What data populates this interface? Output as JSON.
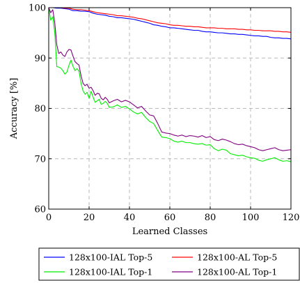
{
  "chart_data": {
    "type": "line",
    "title": "",
    "xlabel": "Learned Classes",
    "ylabel": "Accuracy [%]",
    "xlim": [
      0,
      120
    ],
    "ylim": [
      60,
      100
    ],
    "xticks": [
      "0",
      "20",
      "40",
      "60",
      "80",
      "100",
      "120"
    ],
    "xtick_values": [
      0,
      20,
      40,
      60,
      80,
      100,
      120
    ],
    "yticks": [
      "60",
      "70",
      "80",
      "90",
      "100"
    ],
    "ytick_values": [
      60,
      70,
      80,
      90,
      100
    ],
    "grid": true,
    "legend_position": "bottom-outside",
    "series": [
      {
        "name": "128x100-IAL Top-5",
        "color": "#0000ff",
        "x": [
          0,
          2,
          4,
          6,
          8,
          10,
          12,
          14,
          16,
          18,
          20,
          22,
          24,
          26,
          28,
          30,
          32,
          34,
          36,
          38,
          40,
          42,
          44,
          46,
          48,
          50,
          52,
          54,
          56,
          58,
          60,
          62,
          64,
          66,
          68,
          70,
          72,
          74,
          76,
          78,
          80,
          82,
          84,
          86,
          88,
          90,
          92,
          94,
          96,
          98,
          100,
          102,
          104,
          106,
          108,
          110,
          112,
          114,
          116,
          118,
          120
        ],
        "values": [
          100,
          100,
          99.9,
          99.9,
          99.8,
          99.7,
          99.4,
          99.4,
          99.3,
          99.3,
          99.2,
          98.9,
          98.7,
          98.6,
          98.5,
          98.3,
          98.2,
          98.0,
          98.0,
          97.9,
          97.8,
          97.7,
          97.5,
          97.3,
          97.1,
          96.9,
          96.6,
          96.5,
          96.3,
          96.2,
          96.0,
          96.0,
          95.9,
          95.8,
          95.7,
          95.6,
          95.5,
          95.5,
          95.3,
          95.2,
          95.2,
          95.1,
          95.0,
          95.0,
          94.9,
          94.8,
          94.8,
          94.7,
          94.7,
          94.6,
          94.5,
          94.4,
          94.4,
          94.3,
          94.3,
          94.1,
          94.0,
          94.0,
          93.9,
          93.9,
          93.8
        ]
      },
      {
        "name": "128x100-AL Top-5",
        "color": "#ff0000",
        "x": [
          0,
          2,
          4,
          6,
          8,
          10,
          12,
          14,
          16,
          18,
          20,
          22,
          24,
          26,
          28,
          30,
          32,
          34,
          36,
          38,
          40,
          42,
          44,
          46,
          48,
          50,
          52,
          54,
          56,
          58,
          60,
          62,
          64,
          66,
          68,
          70,
          72,
          74,
          76,
          78,
          80,
          82,
          84,
          86,
          88,
          90,
          92,
          94,
          96,
          98,
          100,
          102,
          104,
          106,
          108,
          110,
          112,
          114,
          116,
          118,
          120
        ],
        "values": [
          100,
          100,
          100,
          100,
          99.9,
          99.9,
          99.7,
          99.6,
          99.6,
          99.5,
          99.4,
          99.2,
          99.0,
          98.9,
          98.8,
          98.7,
          98.6,
          98.4,
          98.4,
          98.3,
          98.2,
          98.1,
          97.9,
          97.8,
          97.6,
          97.4,
          97.2,
          97.0,
          96.9,
          96.8,
          96.6,
          96.5,
          96.5,
          96.4,
          96.3,
          96.3,
          96.2,
          96.2,
          96.1,
          96.0,
          96.0,
          96.0,
          95.9,
          95.9,
          95.8,
          95.8,
          95.8,
          95.7,
          95.7,
          95.6,
          95.6,
          95.5,
          95.5,
          95.4,
          95.4,
          95.4,
          95.3,
          95.3,
          95.2,
          95.2,
          95.1
        ]
      },
      {
        "name": "128x100-IAL Top-1",
        "color": "#00ee00",
        "x": [
          0,
          1,
          2,
          3,
          4,
          5,
          6,
          7,
          8,
          9,
          10,
          11,
          12,
          13,
          14,
          15,
          16,
          17,
          18,
          19,
          20,
          21,
          22,
          23,
          24,
          25,
          26,
          27,
          28,
          29,
          30,
          32,
          34,
          36,
          38,
          40,
          42,
          44,
          46,
          48,
          50,
          52,
          54,
          56,
          58,
          60,
          62,
          64,
          66,
          68,
          70,
          72,
          74,
          76,
          78,
          80,
          82,
          84,
          86,
          88,
          90,
          92,
          94,
          96,
          98,
          100,
          102,
          104,
          106,
          108,
          110,
          112,
          114,
          116,
          118,
          120
        ],
        "values": [
          100,
          97.5,
          98.2,
          95.0,
          88.3,
          88.2,
          88.0,
          87.5,
          86.8,
          87.2,
          88.5,
          89.6,
          88.4,
          87.5,
          87.9,
          87.4,
          85.0,
          83.5,
          82.8,
          83.2,
          82.0,
          83.4,
          82.2,
          81.2,
          81.5,
          81.8,
          80.8,
          81.0,
          81.4,
          81.0,
          80.2,
          80.3,
          80.7,
          80.2,
          80.4,
          79.9,
          79.3,
          78.9,
          79.2,
          78.2,
          77.4,
          77.0,
          75.6,
          74.3,
          74.2,
          74.0,
          73.5,
          73.3,
          73.5,
          73.2,
          73.2,
          73.0,
          72.9,
          73.0,
          72.7,
          72.8,
          72.0,
          71.6,
          71.9,
          71.7,
          71.0,
          70.8,
          70.6,
          70.7,
          70.4,
          70.2,
          70.1,
          69.7,
          69.5,
          69.8,
          70.0,
          70.2,
          69.8,
          69.5,
          69.6,
          69.4
        ]
      },
      {
        "name": "128x100-AL Top-1",
        "color": "#800080",
        "x": [
          0,
          1,
          2,
          3,
          4,
          5,
          6,
          7,
          8,
          9,
          10,
          11,
          12,
          13,
          14,
          15,
          16,
          17,
          18,
          19,
          20,
          21,
          22,
          23,
          24,
          25,
          26,
          27,
          28,
          29,
          30,
          32,
          34,
          36,
          38,
          40,
          42,
          44,
          46,
          48,
          50,
          52,
          54,
          56,
          58,
          60,
          62,
          64,
          66,
          68,
          70,
          72,
          74,
          76,
          78,
          80,
          82,
          84,
          86,
          88,
          90,
          92,
          94,
          96,
          98,
          100,
          102,
          104,
          106,
          108,
          110,
          112,
          114,
          116,
          118,
          120
        ],
        "values": [
          100,
          99.0,
          99.6,
          97.0,
          92.6,
          90.9,
          91.2,
          90.6,
          90.3,
          91.2,
          91.7,
          91.6,
          90.4,
          89.3,
          88.9,
          88.6,
          86.5,
          85.0,
          84.5,
          84.8,
          84.0,
          84.2,
          83.5,
          82.6,
          83.0,
          82.9,
          82.0,
          81.7,
          82.2,
          81.8,
          81.1,
          81.5,
          81.8,
          81.3,
          81.6,
          81.3,
          80.7,
          80.1,
          80.4,
          79.5,
          78.7,
          78.5,
          77.0,
          75.3,
          75.1,
          75.0,
          74.7,
          74.5,
          74.7,
          74.4,
          74.6,
          74.5,
          74.3,
          74.6,
          74.2,
          74.4,
          73.8,
          73.6,
          73.9,
          73.7,
          73.4,
          73.0,
          72.8,
          72.9,
          72.6,
          72.4,
          72.2,
          71.8,
          71.6,
          71.8,
          72.0,
          72.2,
          71.8,
          71.6,
          71.7,
          71.8
        ]
      }
    ]
  }
}
